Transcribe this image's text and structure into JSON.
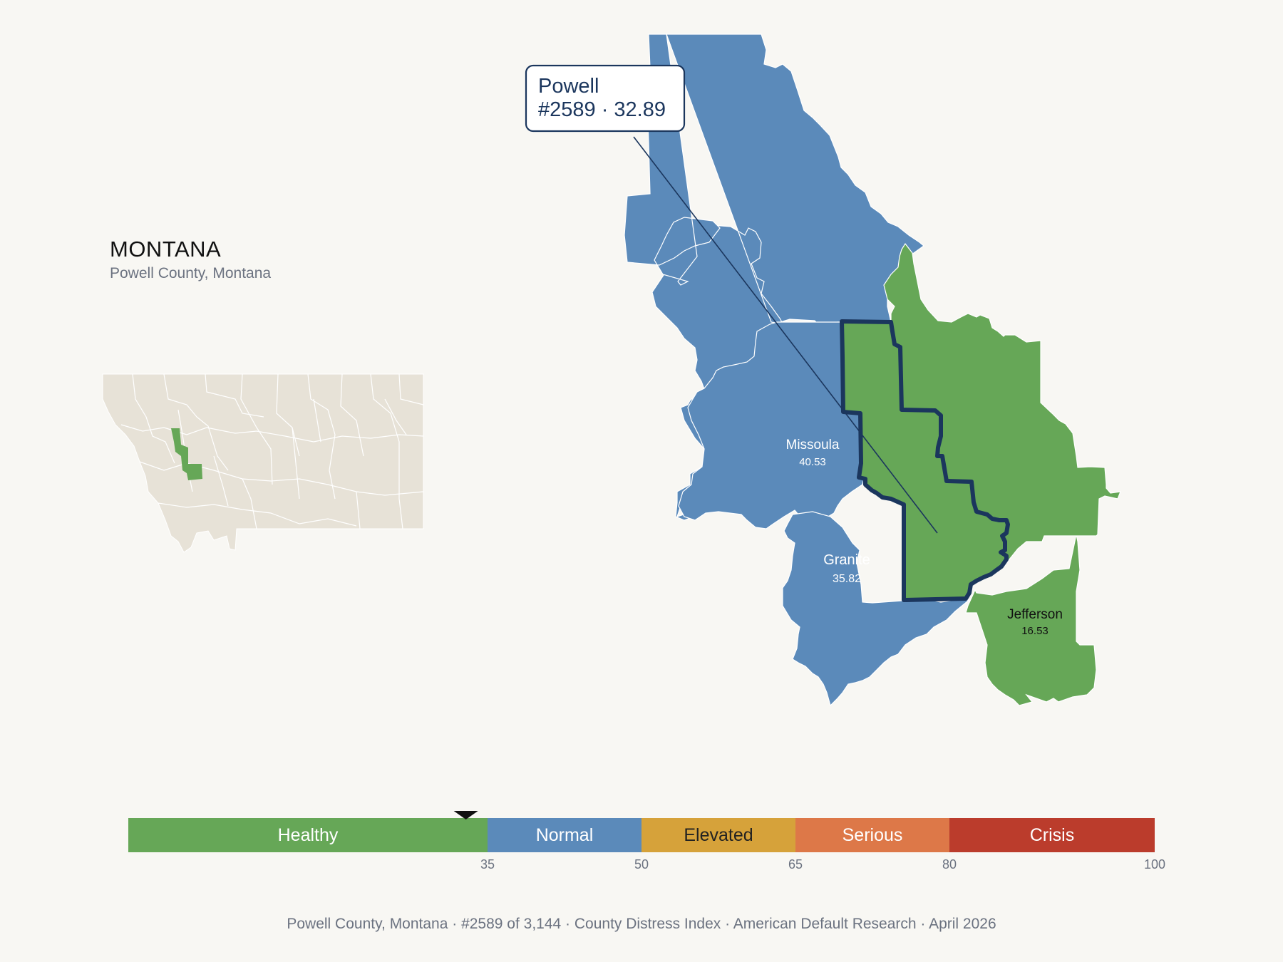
{
  "header": {
    "state": "MONTANA",
    "subtitle": "Powell County, Montana"
  },
  "callout": {
    "name": "Powell",
    "detail": "#2589 · 32.89"
  },
  "counties": [
    {
      "key": "missoula",
      "name": "Missoula",
      "score": "40.53",
      "color": "#5b8aba",
      "text_color": "#ffffff"
    },
    {
      "key": "granite",
      "name": "Granite",
      "score": "35.82",
      "color": "#5b8aba",
      "text_color": "#ffffff"
    },
    {
      "key": "jefferson",
      "name": "Jefferson",
      "score": "16.53",
      "color": "#66a757",
      "text_color": "#111111"
    },
    {
      "key": "powell",
      "name": "Powell",
      "score": "32.89",
      "color": "#66a757",
      "text_color": "#111111"
    }
  ],
  "colors": {
    "healthy": "#66a757",
    "normal": "#5b8aba",
    "elevated": "#d6a23a",
    "serious": "#dd7848",
    "crisis": "#bb3c2c",
    "highlight_border": "#1b365d",
    "inset_land": "#e7e2d7",
    "background": "#f8f7f3"
  },
  "scale": {
    "min": 0,
    "max": 100,
    "marker_value": 32.89,
    "bands": [
      {
        "label": "Healthy",
        "from": 0,
        "to": 35,
        "color": "#66a757",
        "text_color": "#ffffff"
      },
      {
        "label": "Normal",
        "from": 35,
        "to": 50,
        "color": "#5b8aba",
        "text_color": "#ffffff"
      },
      {
        "label": "Elevated",
        "from": 50,
        "to": 65,
        "color": "#d6a23a",
        "text_color": "#222222"
      },
      {
        "label": "Serious",
        "from": 65,
        "to": 80,
        "color": "#dd7848",
        "text_color": "#ffffff"
      },
      {
        "label": "Crisis",
        "from": 80,
        "to": 100,
        "color": "#bb3c2c",
        "text_color": "#ffffff"
      }
    ],
    "ticks": [
      "35",
      "50",
      "65",
      "80",
      "100"
    ]
  },
  "footer": {
    "text": "Powell County, Montana  ·  #2589 of 3,144  ·  County Distress Index  ·  American Default Research  ·  April 2026"
  }
}
